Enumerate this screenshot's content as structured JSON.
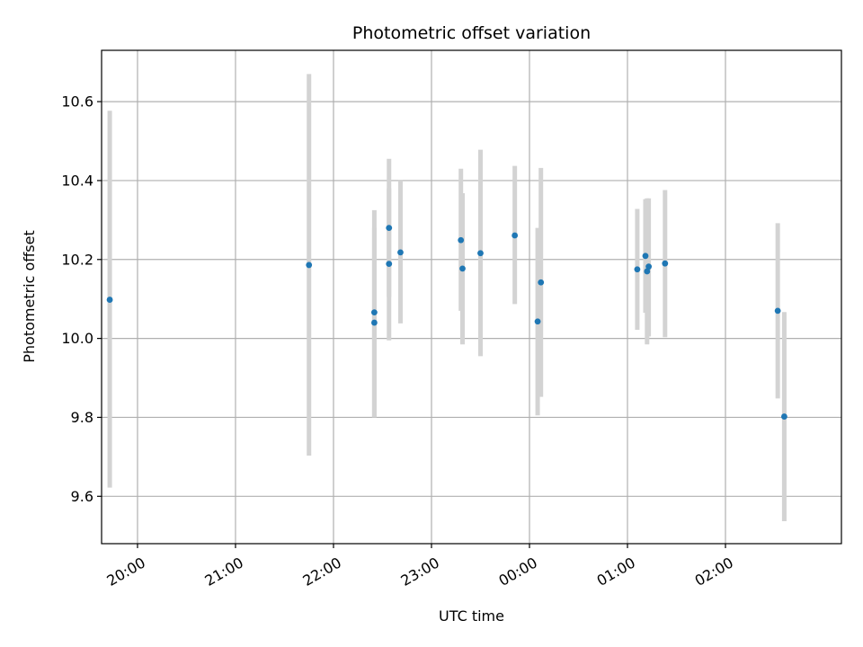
{
  "chart_data": {
    "type": "scatter",
    "title": "Photometric offset variation",
    "xlabel": "UTC time",
    "ylabel": "Photometric offset",
    "x_ticks": [
      "20:00",
      "21:00",
      "22:00",
      "23:00",
      "00:00",
      "01:00",
      "02:00"
    ],
    "y_ticks": [
      "9.6",
      "9.8",
      "10.0",
      "10.2",
      "10.4",
      "10.6"
    ],
    "xlim": [
      "19:38",
      "03:11"
    ],
    "ylim": [
      9.48,
      10.73
    ],
    "grid": true,
    "colors": {
      "marker": "#1f77b4",
      "errorbar": "#d3d3d3",
      "grid": "#b0b0b0"
    },
    "points": [
      {
        "x": "19:43",
        "y": 10.098,
        "err_low": 9.622,
        "err_high": 10.577
      },
      {
        "x": "21:45",
        "y": 10.186,
        "err_low": 9.703,
        "err_high": 10.67
      },
      {
        "x": "22:25",
        "y": 10.066,
        "err_low": 9.8,
        "err_high": 10.325
      },
      {
        "x": "22:25",
        "y": 10.04,
        "err_low": 9.8,
        "err_high": 10.28
      },
      {
        "x": "22:34",
        "y": 10.28,
        "err_low": 10.105,
        "err_high": 10.455
      },
      {
        "x": "22:34",
        "y": 10.189,
        "err_low": 9.995,
        "err_high": 10.38
      },
      {
        "x": "22:41",
        "y": 10.218,
        "err_low": 10.038,
        "err_high": 10.4
      },
      {
        "x": "23:18",
        "y": 10.249,
        "err_low": 10.07,
        "err_high": 10.43
      },
      {
        "x": "23:19",
        "y": 10.177,
        "err_low": 9.985,
        "err_high": 10.368
      },
      {
        "x": "23:30",
        "y": 10.216,
        "err_low": 9.955,
        "err_high": 10.478
      },
      {
        "x": "23:51",
        "y": 10.261,
        "err_low": 10.087,
        "err_high": 10.437
      },
      {
        "x": "00:05",
        "y": 10.043,
        "err_low": 9.805,
        "err_high": 10.28
      },
      {
        "x": "00:07",
        "y": 10.142,
        "err_low": 9.852,
        "err_high": 10.432
      },
      {
        "x": "01:06",
        "y": 10.175,
        "err_low": 10.022,
        "err_high": 10.328
      },
      {
        "x": "01:11",
        "y": 10.209,
        "err_low": 10.065,
        "err_high": 10.353
      },
      {
        "x": "01:12",
        "y": 10.17,
        "err_low": 9.985,
        "err_high": 10.355
      },
      {
        "x": "01:13",
        "y": 10.182,
        "err_low": 10.005,
        "err_high": 10.355
      },
      {
        "x": "01:23",
        "y": 10.19,
        "err_low": 10.003,
        "err_high": 10.376
      },
      {
        "x": "02:32",
        "y": 10.07,
        "err_low": 9.848,
        "err_high": 10.292
      },
      {
        "x": "02:36",
        "y": 9.802,
        "err_low": 9.537,
        "err_high": 10.067
      }
    ]
  }
}
